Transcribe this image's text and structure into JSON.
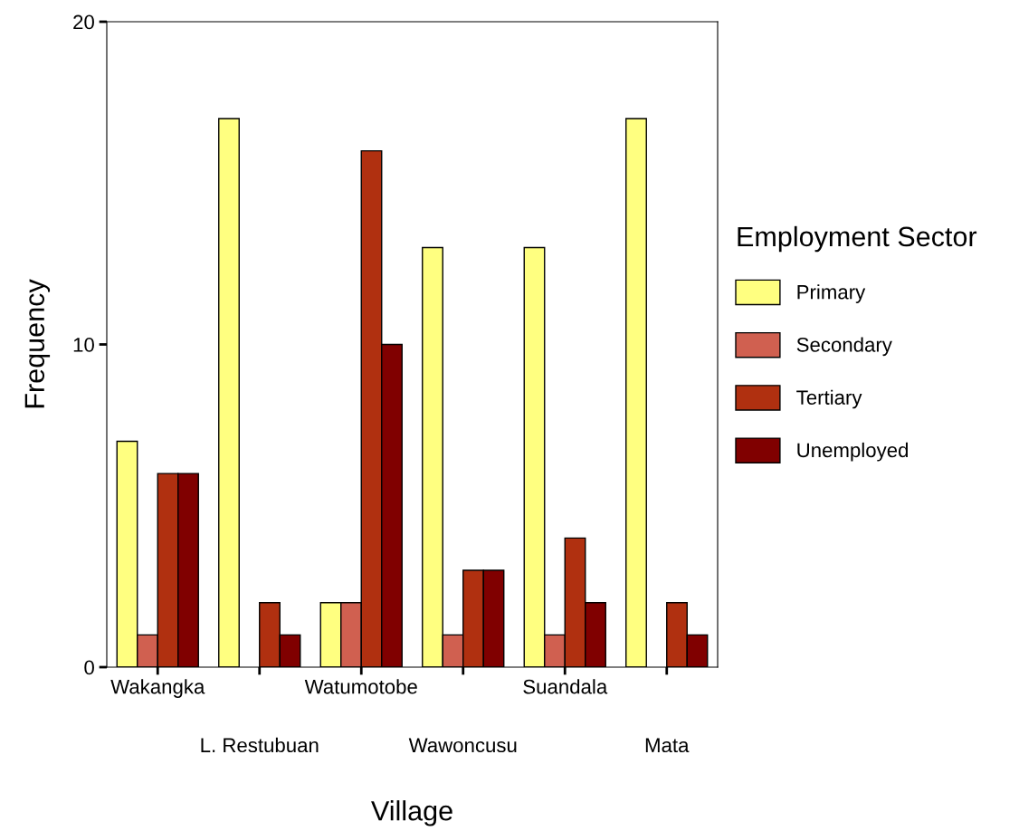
{
  "chart_data": {
    "type": "bar",
    "xlabel": "Village",
    "ylabel": "Frequency",
    "legend_title": "Employment Sector",
    "categories": [
      "Wakangka",
      "L. Restubuan",
      "Watumotobe",
      "Wawoncusu",
      "Suandala",
      "Mata"
    ],
    "series": [
      {
        "name": "Primary",
        "color": "#ffff80",
        "values": [
          7,
          17,
          2,
          13,
          13,
          17
        ]
      },
      {
        "name": "Secondary",
        "color": "#d06050",
        "values": [
          1,
          0,
          2,
          1,
          1,
          0
        ]
      },
      {
        "name": "Tertiary",
        "color": "#b03010",
        "values": [
          6,
          2,
          16,
          3,
          4,
          2
        ]
      },
      {
        "name": "Unemployed",
        "color": "#800000",
        "values": [
          6,
          1,
          10,
          3,
          2,
          1
        ]
      }
    ],
    "ylim": [
      0,
      20
    ],
    "yticks": [
      0,
      10,
      20
    ],
    "grid": false,
    "legend": "right"
  }
}
